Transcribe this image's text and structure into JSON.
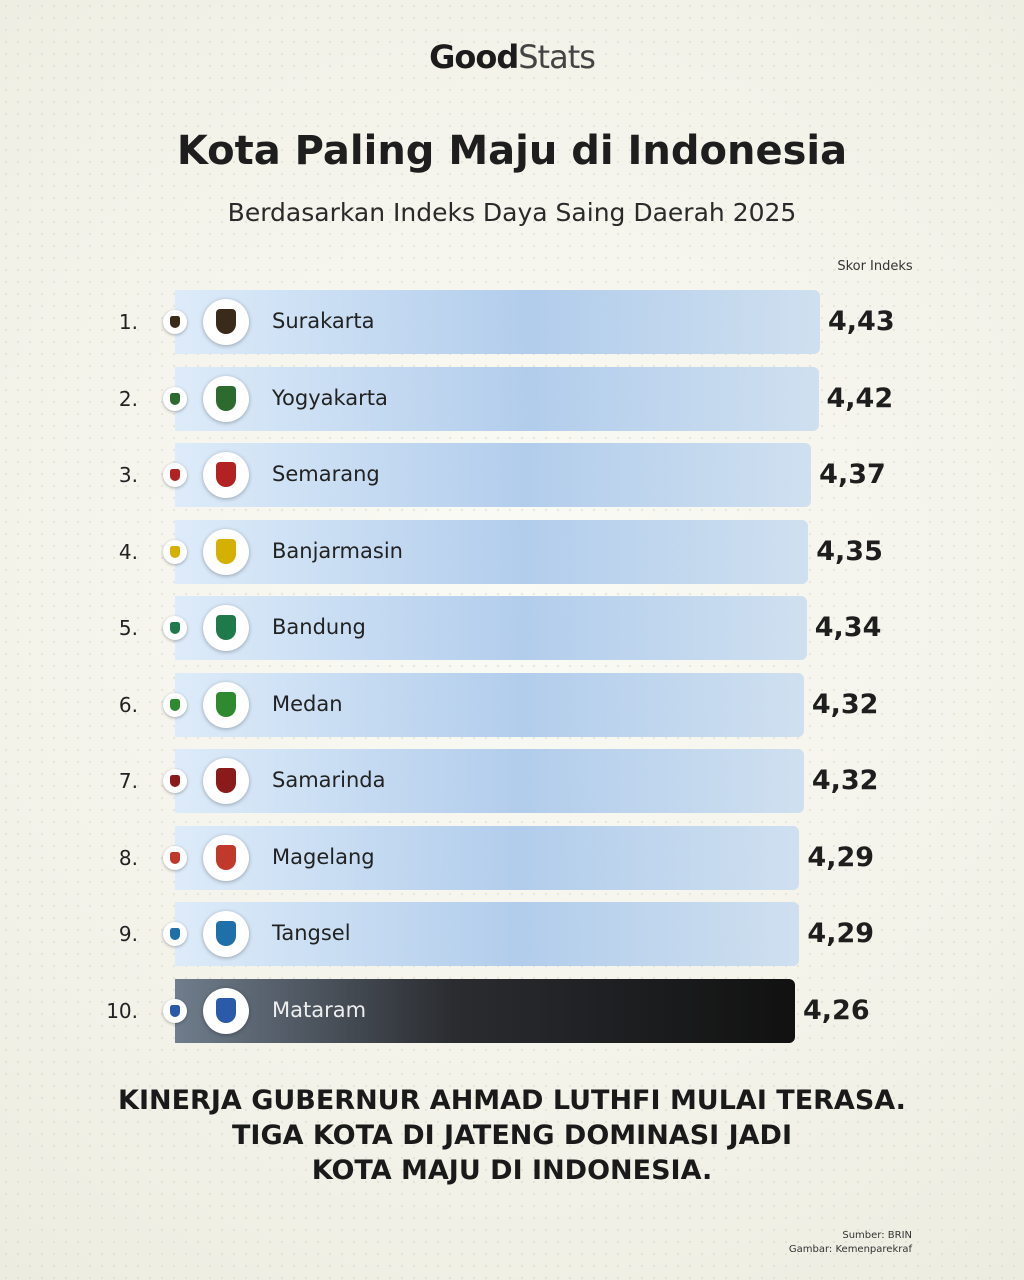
{
  "brand": {
    "bold": "Good",
    "light": "Stats"
  },
  "header": {
    "title": "Kota Paling Maju di Indonesia",
    "subtitle": "Berdasarkan Indeks Daya Saing Daerah 2025",
    "score_label": "Skor Indeks"
  },
  "chart_data": {
    "type": "bar",
    "orientation": "horizontal",
    "title": "Kota Paling Maju di Indonesia",
    "subtitle": "Berdasarkan Indeks Daya Saing Daerah 2025",
    "value_label": "Skor Indeks",
    "ranks": [
      "1.",
      "2.",
      "3.",
      "4.",
      "5.",
      "6.",
      "7.",
      "8.",
      "9.",
      "10."
    ],
    "categories": [
      "Surakarta",
      "Yogyakarta",
      "Semarang",
      "Banjarmasin",
      "Bandung",
      "Medan",
      "Samarinda",
      "Magelang",
      "Tangsel",
      "Mataram"
    ],
    "values": [
      4.43,
      4.42,
      4.37,
      4.35,
      4.34,
      4.32,
      4.32,
      4.29,
      4.29,
      4.26
    ],
    "labels": [
      "4,43",
      "4,42",
      "4,37",
      "4,35",
      "4,34",
      "4,32",
      "4,32",
      "4,29",
      "4,29",
      "4,26"
    ]
  },
  "emblem_colors": [
    "#3a2a1a",
    "#2d6a2d",
    "#b22222",
    "#d4b000",
    "#1e7a4a",
    "#2f8a2f",
    "#8b1a1a",
    "#c0392b",
    "#1f6fa8",
    "#2a5aa8"
  ],
  "footer": {
    "lines": [
      "KINERJA GUBERNUR AHMAD LUTHFI MULAI TERASA.",
      "TIGA KOTA DI JATENG DOMINASI JADI",
      "KOTA MAJU DI INDONESIA."
    ]
  },
  "source": {
    "data": "Sumber: BRIN",
    "image": "Gambar: Kemenparekraf"
  }
}
